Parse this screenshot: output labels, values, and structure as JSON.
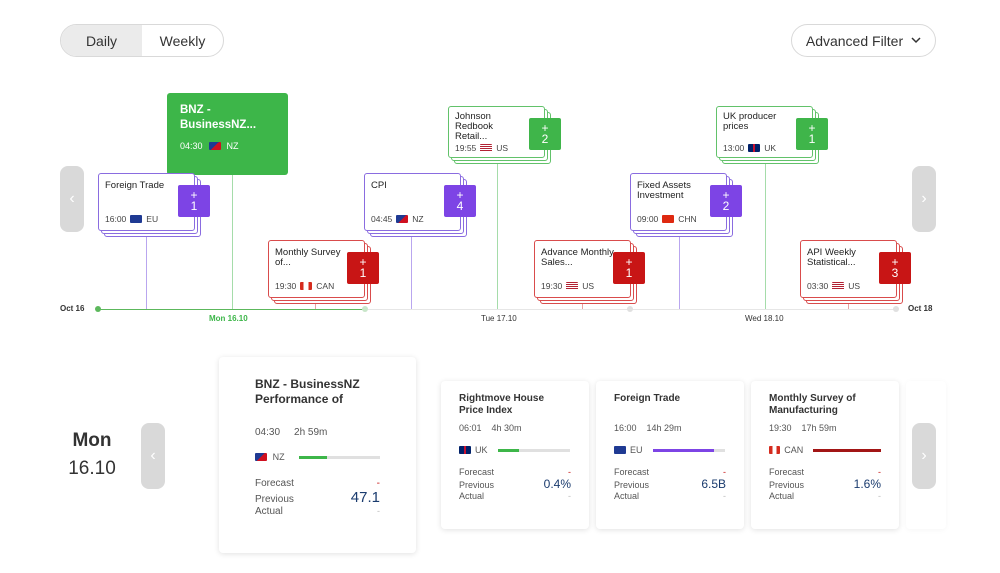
{
  "toggle": {
    "daily": "Daily",
    "weekly": "Weekly"
  },
  "filter": {
    "label": "Advanced Filter"
  },
  "timeline": {
    "axis_labels": {
      "start": "Oct 16",
      "mon": "Mon 16.10",
      "tue": "Tue 17.10",
      "wed": "Wed 18.10",
      "end": "Oct 18"
    },
    "selected": {
      "title": "BNZ - BusinessNZ...",
      "time": "04:30",
      "country": "NZ"
    },
    "events": [
      {
        "title": "Foreign Trade",
        "time": "16:00",
        "country": "EU",
        "badge": "+\n1",
        "color": "purple"
      },
      {
        "title": "Monthly Survey of...",
        "time": "19:30",
        "country": "CAN",
        "badge": "+\n1",
        "color": "red"
      },
      {
        "title": "CPI",
        "time": "04:45",
        "country": "NZ",
        "badge": "+\n4",
        "color": "purple"
      },
      {
        "title": "Johnson Redbook Retail...",
        "time": "19:55",
        "country": "US",
        "badge": "+\n2",
        "color": "green"
      },
      {
        "title": "Advance Monthly Sales...",
        "time": "19:30",
        "country": "US",
        "badge": "+\n1",
        "color": "red"
      },
      {
        "title": "Fixed Assets Investment",
        "time": "09:00",
        "country": "CHN",
        "badge": "+\n2",
        "color": "purple"
      },
      {
        "title": "UK producer prices",
        "time": "13:00",
        "country": "UK",
        "badge": "+\n1",
        "color": "green"
      },
      {
        "title": "API Weekly Statistical...",
        "time": "03:30",
        "country": "US",
        "badge": "+\n3",
        "color": "red"
      }
    ]
  },
  "day": {
    "name": "Mon",
    "date": "16.10"
  },
  "main_card": {
    "title": "BNZ - BusinessNZ Performance of",
    "time": "04:30",
    "countdown": "2h 59m",
    "country": "NZ",
    "forecast_label": "Forecast",
    "forecast": "-",
    "previous_label": "Previous",
    "previous": "47.1",
    "actual_label": "Actual",
    "actual": "-"
  },
  "cards": [
    {
      "title": "Rightmove House Price Index",
      "time": "06:01",
      "countdown": "4h 30m",
      "country": "UK",
      "forecast": "-",
      "previous": "0.4%",
      "actual": "-"
    },
    {
      "title": "Foreign Trade",
      "time": "16:00",
      "countdown": "14h 29m",
      "country": "EU",
      "forecast": "-",
      "previous": "6.5B",
      "actual": "-"
    },
    {
      "title": "Monthly Survey of Manufacturing",
      "time": "19:30",
      "countdown": "17h 59m",
      "country": "CAN",
      "forecast": "-",
      "previous": "1.6%",
      "actual": "-"
    }
  ],
  "labels": {
    "forecast": "Forecast",
    "previous": "Previous",
    "actual": "Actual"
  },
  "progress": {
    "main": 0.35,
    "uk": 0.3,
    "eu": 0.85,
    "can": 1.0
  },
  "colors": {
    "green": "#3db649",
    "purple": "#7d44e5",
    "red": "#c81515"
  }
}
